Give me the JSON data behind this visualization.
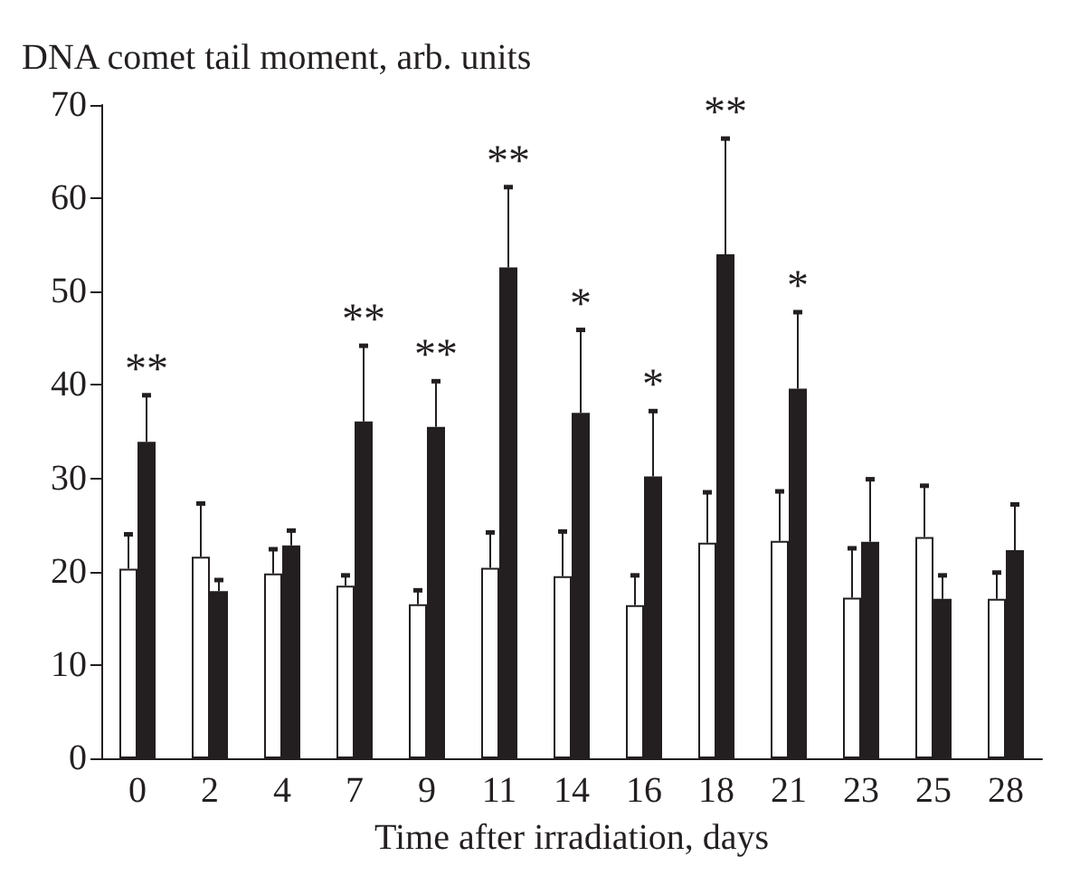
{
  "chart_data": {
    "type": "bar",
    "ylabel": "DNA comet tail moment, arb. units",
    "xlabel": "Time after irradiation, days",
    "categories": [
      "0",
      "2",
      "4",
      "7",
      "9",
      "11",
      "14",
      "16",
      "18",
      "21",
      "23",
      "25",
      "28"
    ],
    "ylim": [
      0,
      70
    ],
    "yticks": [
      0,
      10,
      20,
      30,
      40,
      50,
      60,
      70
    ],
    "grid": false,
    "series": [
      {
        "color": "#ffffff",
        "values": [
          20.3,
          21.6,
          19.8,
          18.5,
          16.5,
          20.4,
          19.5,
          16.4,
          23.1,
          23.3,
          17.2,
          23.7,
          17.1
        ],
        "errors": [
          [
            20.3,
            24.0
          ],
          [
            21.6,
            27.3
          ],
          [
            19.8,
            22.4
          ],
          [
            18.5,
            19.6
          ],
          [
            16.5,
            18.0
          ],
          [
            20.4,
            24.2
          ],
          [
            19.5,
            24.3
          ],
          [
            16.4,
            19.6
          ],
          [
            23.1,
            28.5
          ],
          [
            23.3,
            28.6
          ],
          [
            17.2,
            22.5
          ],
          [
            23.7,
            29.2
          ],
          [
            17.1,
            19.9
          ]
        ]
      },
      {
        "color": "#231f20",
        "values": [
          33.9,
          17.9,
          22.8,
          36.1,
          35.5,
          52.6,
          37.0,
          30.2,
          54.0,
          39.6,
          23.2,
          17.1,
          22.3
        ],
        "errors": [
          [
            33.9,
            38.9
          ],
          [
            17.9,
            19.1
          ],
          [
            22.8,
            24.4
          ],
          [
            36.1,
            44.2
          ],
          [
            35.5,
            40.4
          ],
          [
            52.6,
            61.2
          ],
          [
            37.0,
            45.9
          ],
          [
            30.2,
            37.2
          ],
          [
            54.0,
            66.4
          ],
          [
            39.6,
            47.8
          ],
          [
            23.2,
            29.9
          ],
          [
            17.1,
            19.6
          ],
          [
            22.3,
            27.2
          ]
        ]
      }
    ],
    "annotations": [
      {
        "text": "**",
        "x": "0",
        "y": 38.9
      },
      {
        "text": "**",
        "x": "7",
        "y": 44.2
      },
      {
        "text": "**",
        "x": "9",
        "y": 40.4
      },
      {
        "text": "**",
        "x": "11",
        "y": 61.2
      },
      {
        "text": "*",
        "x": "14",
        "y": 45.9
      },
      {
        "text": "*",
        "x": "16",
        "y": 37.2
      },
      {
        "text": "**",
        "x": "18",
        "y": 66.4
      },
      {
        "text": "*",
        "x": "21",
        "y": 47.8
      }
    ]
  }
}
